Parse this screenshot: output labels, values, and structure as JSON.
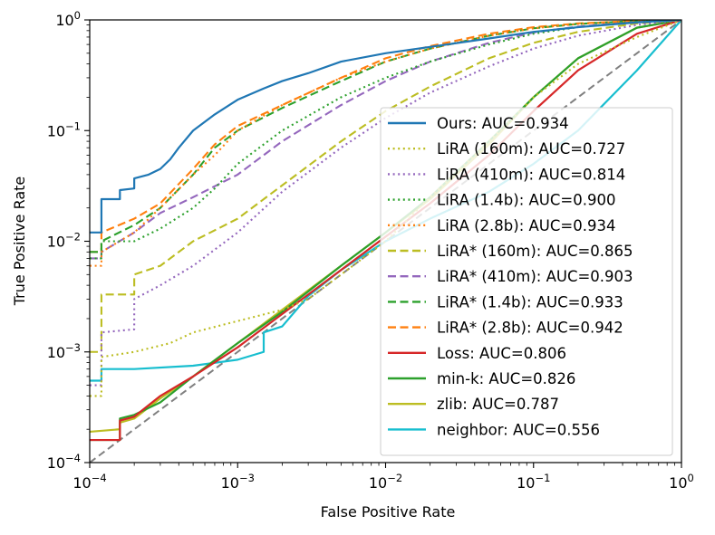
{
  "chart_data": {
    "type": "line",
    "title": "",
    "xlabel": "False Positive Rate",
    "ylabel": "True Positive Rate",
    "xscale": "log",
    "yscale": "log",
    "xlim": [
      0.0001,
      1
    ],
    "ylim": [
      0.0001,
      1
    ],
    "x_ticks": [
      {
        "value": 0.0001,
        "base": "10",
        "exp": "−4"
      },
      {
        "value": 0.001,
        "base": "10",
        "exp": "−3"
      },
      {
        "value": 0.01,
        "base": "10",
        "exp": "−2"
      },
      {
        "value": 0.1,
        "base": "10",
        "exp": "−1"
      },
      {
        "value": 1,
        "base": "10",
        "exp": "0"
      }
    ],
    "y_ticks": [
      {
        "value": 0.0001,
        "base": "10",
        "exp": "−4"
      },
      {
        "value": 0.001,
        "base": "10",
        "exp": "−3"
      },
      {
        "value": 0.01,
        "base": "10",
        "exp": "−2"
      },
      {
        "value": 0.1,
        "base": "10",
        "exp": "−1"
      },
      {
        "value": 1,
        "base": "10",
        "exp": "0"
      }
    ],
    "legend_position": "lower-right",
    "reference_line": {
      "name": "random-guess",
      "x": [
        0.0001,
        1
      ],
      "y": [
        0.0001,
        1
      ],
      "color": "#808080",
      "style": "dashed"
    },
    "series": [
      {
        "name": "Ours: AUC=0.934",
        "color": "#1f77b4",
        "style": "solid",
        "x": [
          0.0001,
          0.00012,
          0.00012,
          0.00016,
          0.00016,
          0.0002,
          0.0002,
          0.00025,
          0.0003,
          0.00035,
          0.0004,
          0.0005,
          0.0007,
          0.001,
          0.0015,
          0.002,
          0.003,
          0.005,
          0.01,
          0.02,
          0.05,
          0.1,
          0.2,
          0.5,
          1
        ],
        "y": [
          0.012,
          0.012,
          0.024,
          0.024,
          0.029,
          0.03,
          0.037,
          0.04,
          0.045,
          0.055,
          0.07,
          0.1,
          0.14,
          0.19,
          0.24,
          0.28,
          0.33,
          0.42,
          0.5,
          0.57,
          0.68,
          0.78,
          0.86,
          0.95,
          1
        ]
      },
      {
        "name": "LiRA (160m): AUC=0.727",
        "color": "#bcbd22",
        "style": "dotted",
        "x": [
          0.0001,
          0.00012,
          0.00012,
          0.0002,
          0.00035,
          0.0005,
          0.001,
          0.002,
          0.003,
          0.005,
          0.01,
          0.02,
          0.05,
          0.1,
          0.2,
          0.5,
          1
        ],
        "y": [
          0.0004,
          0.0004,
          0.0009,
          0.001,
          0.0012,
          0.0015,
          0.0019,
          0.0024,
          0.003,
          0.005,
          0.01,
          0.025,
          0.08,
          0.2,
          0.4,
          0.7,
          1
        ]
      },
      {
        "name": "LiRA (410m): AUC=0.814",
        "color": "#9467bd",
        "style": "dotted",
        "x": [
          0.0001,
          0.00012,
          0.00012,
          0.0002,
          0.0002,
          0.0003,
          0.0005,
          0.001,
          0.002,
          0.005,
          0.01,
          0.02,
          0.05,
          0.1,
          0.2,
          0.5,
          1
        ],
        "y": [
          0.0005,
          0.0005,
          0.0015,
          0.0016,
          0.003,
          0.004,
          0.006,
          0.012,
          0.028,
          0.07,
          0.13,
          0.22,
          0.38,
          0.55,
          0.72,
          0.9,
          1
        ]
      },
      {
        "name": "LiRA (1.4b): AUC=0.900",
        "color": "#2ca02c",
        "style": "dotted",
        "x": [
          0.0001,
          0.00012,
          0.00012,
          0.0002,
          0.0003,
          0.0005,
          0.0007,
          0.001,
          0.002,
          0.005,
          0.01,
          0.02,
          0.05,
          0.1,
          0.2,
          0.5,
          1
        ],
        "y": [
          0.007,
          0.007,
          0.01,
          0.01,
          0.013,
          0.02,
          0.03,
          0.05,
          0.1,
          0.2,
          0.3,
          0.42,
          0.6,
          0.75,
          0.86,
          0.96,
          1
        ]
      },
      {
        "name": "LiRA (2.8b): AUC=0.934",
        "color": "#ff7f0e",
        "style": "dotted",
        "x": [
          0.0001,
          0.00012,
          0.00012,
          0.0002,
          0.0003,
          0.0005,
          0.0007,
          0.001,
          0.002,
          0.005,
          0.01,
          0.02,
          0.05,
          0.1,
          0.2,
          0.5,
          1
        ],
        "y": [
          0.006,
          0.006,
          0.008,
          0.012,
          0.02,
          0.04,
          0.06,
          0.1,
          0.17,
          0.3,
          0.42,
          0.55,
          0.72,
          0.84,
          0.92,
          0.98,
          1
        ]
      },
      {
        "name": "LiRA* (160m): AUC=0.865",
        "color": "#bcbd22",
        "style": "dashed",
        "x": [
          0.0001,
          0.00012,
          0.00012,
          0.0002,
          0.0002,
          0.0003,
          0.0005,
          0.001,
          0.002,
          0.005,
          0.01,
          0.02,
          0.05,
          0.1,
          0.2,
          0.5,
          1
        ],
        "y": [
          0.001,
          0.001,
          0.0033,
          0.0033,
          0.005,
          0.006,
          0.01,
          0.016,
          0.032,
          0.08,
          0.15,
          0.25,
          0.45,
          0.62,
          0.78,
          0.93,
          1
        ]
      },
      {
        "name": "LiRA* (410m): AUC=0.903",
        "color": "#9467bd",
        "style": "dashed",
        "x": [
          0.0001,
          0.00012,
          0.00012,
          0.0002,
          0.0003,
          0.0005,
          0.001,
          0.002,
          0.005,
          0.01,
          0.02,
          0.05,
          0.1,
          0.2,
          0.5,
          1
        ],
        "y": [
          0.007,
          0.007,
          0.008,
          0.012,
          0.018,
          0.025,
          0.04,
          0.08,
          0.17,
          0.28,
          0.42,
          0.62,
          0.77,
          0.87,
          0.96,
          1
        ]
      },
      {
        "name": "LiRA* (1.4b): AUC=0.933",
        "color": "#2ca02c",
        "style": "dashed",
        "x": [
          0.0001,
          0.00012,
          0.00012,
          0.0002,
          0.0003,
          0.0005,
          0.0007,
          0.001,
          0.002,
          0.005,
          0.01,
          0.02,
          0.05,
          0.1,
          0.2,
          0.5,
          1
        ],
        "y": [
          0.008,
          0.008,
          0.01,
          0.014,
          0.02,
          0.04,
          0.07,
          0.1,
          0.16,
          0.28,
          0.42,
          0.55,
          0.72,
          0.84,
          0.92,
          0.98,
          1
        ]
      },
      {
        "name": "LiRA* (2.8b): AUC=0.942",
        "color": "#ff7f0e",
        "style": "dashed",
        "x": [
          0.0001,
          0.00012,
          0.00012,
          0.0002,
          0.0003,
          0.0005,
          0.0007,
          0.001,
          0.002,
          0.005,
          0.01,
          0.02,
          0.05,
          0.1,
          0.2,
          0.5,
          1
        ],
        "y": [
          0.008,
          0.008,
          0.012,
          0.016,
          0.022,
          0.045,
          0.075,
          0.11,
          0.17,
          0.3,
          0.45,
          0.58,
          0.75,
          0.86,
          0.93,
          0.98,
          1
        ]
      },
      {
        "name": "Loss: AUC=0.806",
        "color": "#d62728",
        "style": "solid",
        "x": [
          0.0001,
          0.00016,
          0.00016,
          0.0002,
          0.0003,
          0.0005,
          0.001,
          0.002,
          0.005,
          0.01,
          0.02,
          0.05,
          0.1,
          0.2,
          0.5,
          1
        ],
        "y": [
          0.00016,
          0.00016,
          0.00024,
          0.00026,
          0.0004,
          0.0006,
          0.0011,
          0.0022,
          0.0055,
          0.011,
          0.022,
          0.06,
          0.15,
          0.35,
          0.75,
          1
        ]
      },
      {
        "name": "min-k: AUC=0.826",
        "color": "#2ca02c",
        "style": "solid",
        "x": [
          0.0001,
          0.00016,
          0.00016,
          0.0002,
          0.0003,
          0.0005,
          0.001,
          0.002,
          0.005,
          0.01,
          0.02,
          0.05,
          0.1,
          0.2,
          0.5,
          1
        ],
        "y": [
          0.00016,
          0.00016,
          0.00025,
          0.00027,
          0.00035,
          0.0006,
          0.0012,
          0.0023,
          0.006,
          0.012,
          0.025,
          0.08,
          0.2,
          0.45,
          0.85,
          1
        ]
      },
      {
        "name": "zlib: AUC=0.787",
        "color": "#bcbd22",
        "style": "solid",
        "x": [
          0.0001,
          0.00016,
          0.00016,
          0.0002,
          0.0003,
          0.0005,
          0.001,
          0.002,
          0.005,
          0.01,
          0.02,
          0.05,
          0.1,
          0.2,
          0.5,
          1
        ],
        "y": [
          0.00019,
          0.0002,
          0.00023,
          0.00025,
          0.00038,
          0.0006,
          0.0012,
          0.0024,
          0.006,
          0.012,
          0.024,
          0.075,
          0.2,
          0.45,
          0.85,
          1
        ]
      },
      {
        "name": "neighbor: AUC=0.556",
        "color": "#17becf",
        "style": "solid",
        "x": [
          0.0001,
          0.00012,
          0.00012,
          0.0002,
          0.0005,
          0.001,
          0.0015,
          0.0015,
          0.002,
          0.003,
          0.005,
          0.01,
          0.02,
          0.05,
          0.1,
          0.2,
          0.5,
          1
        ],
        "y": [
          0.00055,
          0.00055,
          0.0007,
          0.0007,
          0.00075,
          0.00085,
          0.001,
          0.0015,
          0.0017,
          0.0032,
          0.0055,
          0.01,
          0.016,
          0.028,
          0.05,
          0.1,
          0.35,
          1
        ]
      }
    ]
  }
}
